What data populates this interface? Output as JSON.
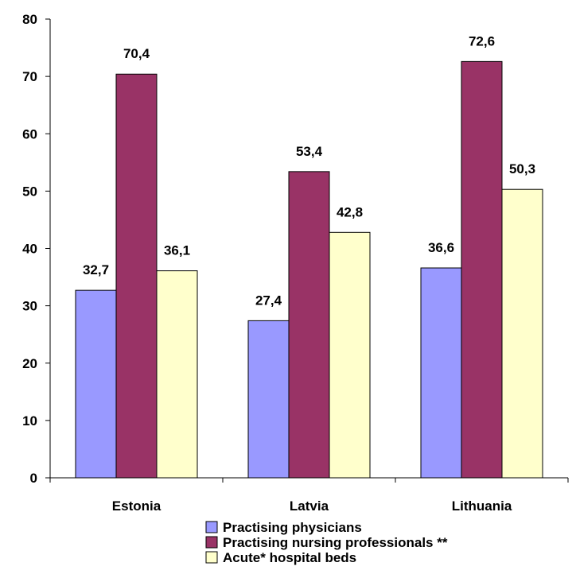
{
  "chart_data": {
    "type": "bar",
    "categories": [
      "Estonia",
      "Latvia",
      "Lithuania"
    ],
    "series": [
      {
        "name": "Practising physicians",
        "values": [
          32.7,
          27.4,
          36.6
        ],
        "labels": [
          "32,7",
          "27,4",
          "36,6"
        ],
        "color": "#9999ff"
      },
      {
        "name": "Practising nursing professionals **",
        "values": [
          70.4,
          53.4,
          72.6
        ],
        "labels": [
          "70,4",
          "53,4",
          "72,6"
        ],
        "color": "#993366"
      },
      {
        "name": "Acute* hospital beds",
        "values": [
          36.1,
          42.8,
          50.3
        ],
        "labels": [
          "36,1",
          "42,8",
          "50,3"
        ],
        "color": "#ffffcc"
      }
    ],
    "yticks": [
      "0",
      "10",
      "20",
      "30",
      "40",
      "50",
      "60",
      "70",
      "80"
    ],
    "ylim": [
      0,
      80
    ],
    "grid": false,
    "legend_position": "bottom"
  }
}
